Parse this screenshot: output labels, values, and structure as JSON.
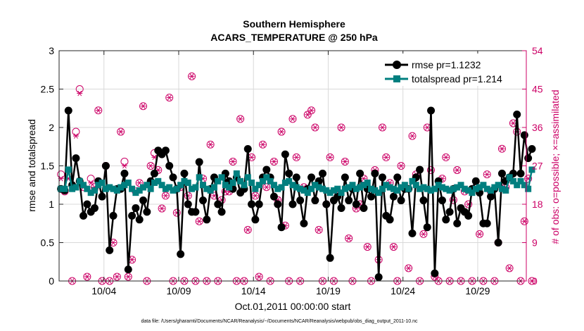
{
  "colors": {
    "rmse": "#000000",
    "spread": "#007f7f",
    "obs": "#cc0066",
    "grid": "#d9d9d9",
    "axis": "#262626"
  },
  "chart_data": {
    "type": "line",
    "title": "Southern Hemisphere",
    "subtitle": "ACARS_TEMPERATURE @ 250 hPa",
    "xlabel": "Oct.01,2011 00:00:00 start",
    "ylabel": "rmse and totalspread",
    "ylabel_right": "# of obs: o=possible; ×=assimilated",
    "footnote": "data file: /Users/gharamti/Documents/NCAR/Reanalysis/~/Documents/NCAR/Reanalysis/webpub/obs_diag_output_2011-10.nc",
    "xlim": [
      1.0,
      32.25
    ],
    "ylim": [
      0,
      3
    ],
    "ylim_right": [
      0,
      54
    ],
    "xticks": [
      {
        "value": 4,
        "label": "10/04"
      },
      {
        "value": 9,
        "label": "10/09"
      },
      {
        "value": 14,
        "label": "10/14"
      },
      {
        "value": 19,
        "label": "10/19"
      },
      {
        "value": 24,
        "label": "10/24"
      },
      {
        "value": 29,
        "label": "10/29"
      }
    ],
    "yticks": [
      {
        "value": 0,
        "label": "0"
      },
      {
        "value": 0.5,
        "label": "0.5"
      },
      {
        "value": 1,
        "label": "1"
      },
      {
        "value": 1.5,
        "label": "1.5"
      },
      {
        "value": 2,
        "label": "2"
      },
      {
        "value": 2.5,
        "label": "2.5"
      },
      {
        "value": 3,
        "label": "3"
      }
    ],
    "yticks_right": [
      {
        "value": 0,
        "label": "0"
      },
      {
        "value": 9,
        "label": "9"
      },
      {
        "value": 18,
        "label": "18"
      },
      {
        "value": 27,
        "label": "27"
      },
      {
        "value": 36,
        "label": "36"
      },
      {
        "value": 45,
        "label": "45"
      },
      {
        "value": 54,
        "label": "54"
      }
    ],
    "grid": true,
    "legend_position": "top-right",
    "x_start": 1.125,
    "x_step": 0.25,
    "series": [
      {
        "name": "rmse pr=1.1232",
        "marker": "circle",
        "values": [
          1.2,
          1.18,
          2.22,
          1.25,
          1.6,
          1.3,
          0.85,
          1.0,
          0.9,
          0.95,
          1.3,
          1.1,
          1.5,
          0.4,
          0.85,
          1.2,
          1.2,
          1.4,
          0.15,
          0.85,
          0.95,
          0.8,
          1.05,
          0.9,
          1.3,
          1.4,
          1.7,
          1.65,
          1.7,
          1.5,
          1.35,
          1.2,
          0.35,
          1.4,
          1.0,
          0.9,
          0.9,
          1.55,
          1.05,
          0.8,
          1.2,
          1.35,
          1.0,
          0.9,
          1.4,
          1.3,
          1.2,
          1.35,
          1.15,
          1.2,
          1.72,
          1.0,
          0.8,
          1.0,
          1.35,
          1.45,
          1.35,
          1.1,
          1.0,
          0.7,
          1.65,
          1.4,
          1.0,
          1.35,
          1.05,
          0.75,
          1.2,
          1.35,
          1.05,
          1.3,
          1.4,
          1.0,
          0.3,
          1.05,
          1.1,
          0.95,
          1.35,
          1.05,
          1.2,
          1.0,
          1.4,
          0.95,
          1.2,
          1.1,
          1.4,
          0.05,
          1.35,
          0.85,
          0.8,
          1.1,
          1.35,
          1.05,
          1.2,
          1.2,
          0.62,
          1.35,
          1.45,
          1.05,
          0.7,
          2.22,
          0.1,
          1.3,
          1.05,
          0.8,
          0.9,
          1.2,
          0.75,
          0.95,
          0.9,
          0.85,
          1.2,
          1.3,
          1.15,
          0.75,
          0.75,
          1.1,
          1.2,
          0.5,
          1.4,
          1.3,
          1.35,
          1.4,
          2.17,
          1.4,
          1.9,
          1.6,
          1.72
        ],
        "color": "#000000"
      },
      {
        "name": "totalspread pr=1.214",
        "marker": "square",
        "values": [
          1.2,
          1.2,
          1.45,
          1.2,
          1.22,
          1.3,
          1.25,
          1.2,
          1.15,
          1.18,
          1.25,
          1.28,
          1.2,
          1.22,
          1.2,
          1.18,
          1.22,
          1.25,
          1.28,
          1.2,
          1.15,
          1.18,
          1.22,
          1.25,
          1.2,
          1.28,
          1.3,
          1.25,
          1.2,
          1.22,
          1.18,
          1.2,
          1.25,
          1.3,
          1.28,
          1.2,
          1.22,
          1.35,
          1.25,
          1.2,
          1.18,
          1.22,
          1.3,
          1.35,
          1.25,
          1.22,
          1.28,
          1.4,
          1.3,
          1.25,
          1.35,
          1.28,
          1.2,
          1.25,
          1.3,
          1.35,
          1.3,
          1.25,
          1.2,
          1.22,
          1.28,
          1.3,
          1.25,
          1.22,
          1.2,
          1.18,
          1.15,
          1.2,
          1.25,
          1.22,
          1.2,
          1.18,
          1.15,
          1.18,
          1.2,
          1.15,
          1.2,
          1.22,
          1.25,
          1.2,
          1.22,
          1.25,
          1.28,
          1.2,
          1.18,
          1.15,
          1.2,
          1.25,
          1.22,
          1.2,
          1.18,
          1.22,
          1.25,
          1.2,
          1.3,
          1.25,
          1.2,
          1.22,
          1.2,
          1.18,
          1.2,
          1.25,
          1.22,
          1.2,
          1.18,
          1.2,
          1.22,
          1.25,
          1.2,
          1.18,
          1.15,
          1.2,
          1.22,
          1.25,
          1.2,
          1.18,
          1.22,
          1.25,
          1.2,
          1.18,
          1.35,
          1.3,
          1.25,
          1.3,
          1.25,
          1.2,
          1.45
        ]
      },
      {
        "name": "possible",
        "marker": "open-circle",
        "axis": "right",
        "values": [
          25,
          21,
          25,
          0,
          35,
          45,
          22,
          1,
          24,
          22,
          40,
          0,
          27,
          0,
          9,
          1,
          35,
          28,
          1,
          5,
          21,
          23,
          41,
          0,
          27,
          30,
          26,
          17,
          20,
          43,
          0,
          16,
          22,
          0,
          20,
          48,
          0,
          14,
          24,
          0,
          32,
          20,
          0,
          19,
          21,
          21,
          28,
          0,
          38,
          0,
          12,
          29,
          20,
          1,
          32,
          22,
          0,
          28,
          19,
          35,
          13,
          0,
          38,
          29,
          0,
          22,
          39,
          40,
          36,
          12,
          0,
          18,
          29,
          0,
          21,
          36,
          28,
          10,
          0,
          17,
          18,
          24,
          8,
          0,
          26,
          5,
          36,
          29,
          23,
          8,
          0,
          27,
          22,
          3,
          34,
          25,
          0,
          11,
          36,
          26,
          1,
          0,
          24,
          29,
          0,
          19,
          26,
          0,
          21,
          18,
          0,
          22,
          11,
          0,
          25,
          21,
          0,
          9,
          31,
          22,
          3,
          37,
          35,
          0,
          14,
          24,
          0
        ],
        "color": "#cc0066"
      },
      {
        "name": "assimilated",
        "marker": "asterisk",
        "axis": "right",
        "values": [
          24,
          21,
          24,
          0,
          34,
          44,
          22,
          1,
          23,
          22,
          40,
          0,
          27,
          0,
          9,
          1,
          35,
          27,
          1,
          5,
          21,
          23,
          41,
          0,
          27,
          29,
          26,
          17,
          20,
          43,
          0,
          16,
          22,
          0,
          20,
          48,
          0,
          14,
          24,
          0,
          32,
          20,
          0,
          19,
          21,
          21,
          28,
          0,
          38,
          0,
          12,
          29,
          20,
          1,
          32,
          22,
          0,
          28,
          19,
          35,
          13,
          0,
          38,
          29,
          0,
          22,
          39,
          40,
          36,
          12,
          0,
          18,
          29,
          0,
          21,
          36,
          28,
          10,
          0,
          17,
          18,
          24,
          8,
          0,
          26,
          5,
          36,
          29,
          23,
          8,
          0,
          27,
          22,
          3,
          34,
          25,
          0,
          11,
          36,
          26,
          1,
          0,
          24,
          29,
          0,
          19,
          26,
          0,
          21,
          18,
          0,
          22,
          11,
          0,
          25,
          21,
          0,
          9,
          31,
          22,
          3,
          37,
          35,
          0,
          14,
          24,
          0
        ]
      }
    ]
  }
}
